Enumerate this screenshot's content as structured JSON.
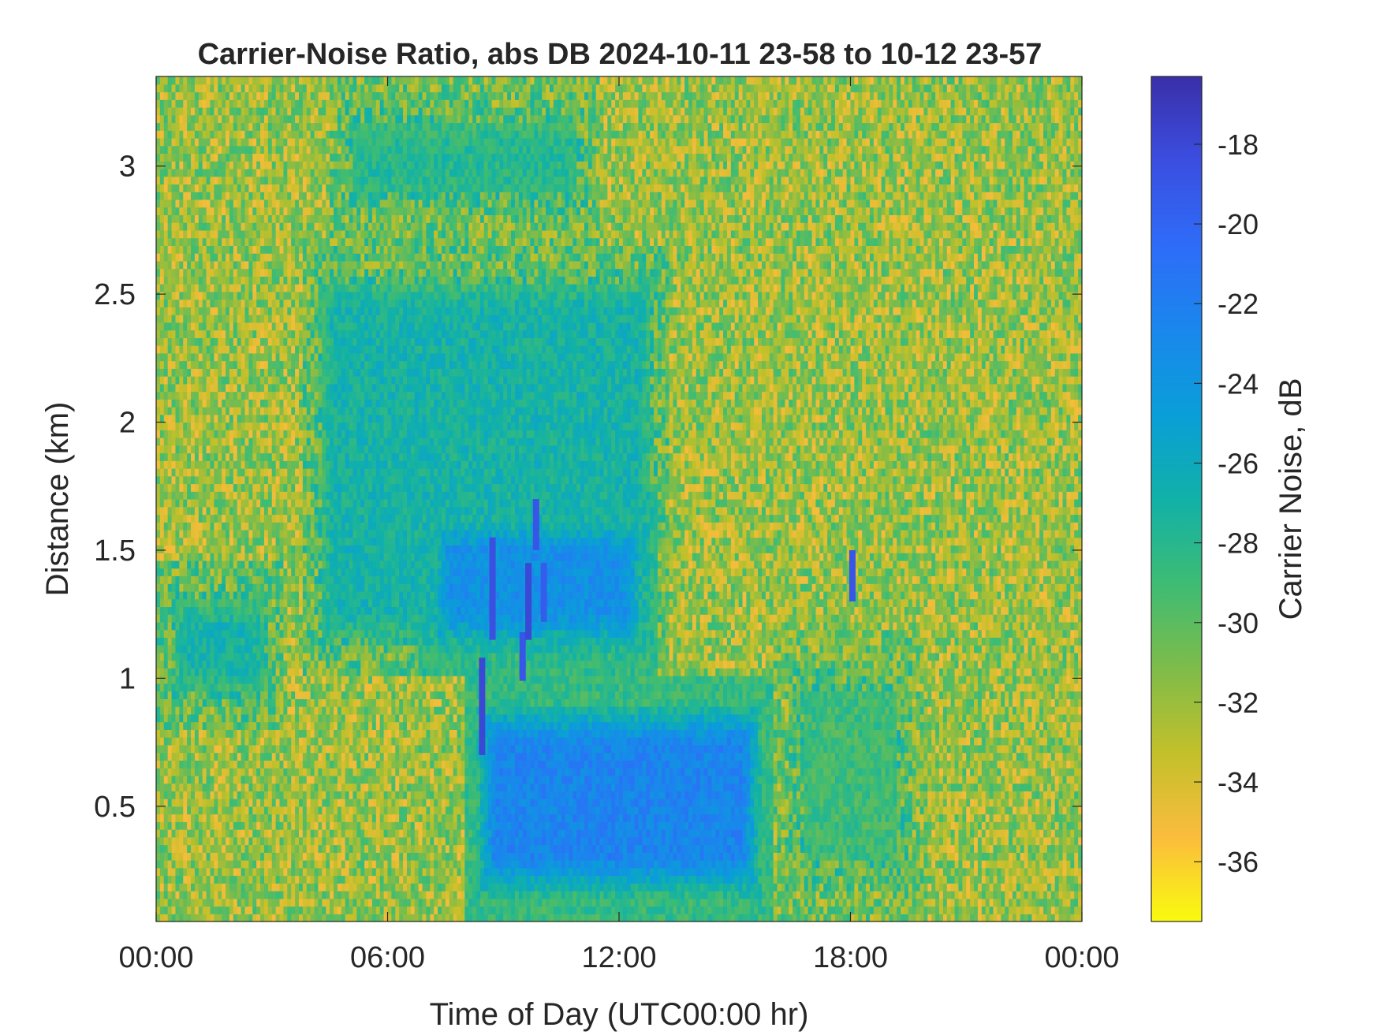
{
  "chart_data": {
    "type": "heatmap",
    "title": "Carrier-Noise Ratio, abs DB 2024-10-11 23-58 to 10-12 23-57",
    "xlabel": "Time of Day (UTC00:00 hr)",
    "ylabel": "Distance (km)",
    "xlim": [
      0,
      24
    ],
    "ylim": [
      0.05,
      3.35
    ],
    "xticks": [
      0,
      6,
      12,
      18,
      24
    ],
    "xtick_labels": [
      "00:00",
      "06:00",
      "12:00",
      "18:00",
      "00:00"
    ],
    "yticks": [
      0.5,
      1,
      1.5,
      2,
      2.5,
      3
    ],
    "ytick_labels": [
      "0.5",
      "1",
      "1.5",
      "2",
      "2.5",
      "3"
    ],
    "colorbar": {
      "label": "Carrier Noise, dB",
      "range": [
        -37.5,
        -16.3
      ],
      "direction": "reversed (high values at top)",
      "ticks": [
        -18,
        -20,
        -22,
        -24,
        -26,
        -28,
        -30,
        -32,
        -34,
        -36
      ],
      "tick_labels": [
        "-18",
        "-20",
        "-22",
        "-24",
        "-26",
        "-28",
        "-30",
        "-32",
        "-34",
        "-36"
      ],
      "colormap": [
        "#f9fb0e",
        "#fbbc3d",
        "#c2c02a",
        "#7ebc4a",
        "#3dbc74",
        "#11b1a8",
        "#0a9ed8",
        "#1a87ec",
        "#2e6cf8",
        "#3b4ee0",
        "#3a2fa8"
      ]
    },
    "grid": false,
    "description_of_field": [
      {
        "region": "background noise",
        "time_range": [
          0,
          24
        ],
        "distance_range": [
          0.05,
          3.35
        ],
        "value": -32
      },
      {
        "region": "boundary layer core",
        "time_range": [
          8,
          16
        ],
        "distance_range": [
          0.05,
          1.0
        ],
        "value": -22.5
      },
      {
        "region": "morning plume",
        "time_range": [
          6.8,
          13
        ],
        "distance_range": [
          1.0,
          1.75
        ],
        "value": -23.5
      },
      {
        "region": "mid-level band",
        "time_range": [
          3.8,
          13.3
        ],
        "distance_range": [
          1.0,
          2.7
        ],
        "value": -27
      },
      {
        "region": "upper band",
        "time_range": [
          4.5,
          11.5
        ],
        "distance_range": [
          2.7,
          3.35
        ],
        "value": -28
      },
      {
        "region": "early morning layer",
        "time_range": [
          0,
          3.3
        ],
        "distance_range": [
          0.8,
          1.45
        ],
        "value": -27
      },
      {
        "region": "afternoon decay",
        "time_range": [
          16,
          20
        ],
        "distance_range": [
          0.05,
          1.2
        ],
        "value": -29
      }
    ],
    "streaks": [
      {
        "time": 8.45,
        "distance_range": [
          0.7,
          1.08
        ],
        "value": -18
      },
      {
        "time": 8.72,
        "distance_range": [
          1.15,
          1.55
        ],
        "value": -18.5
      },
      {
        "time": 9.5,
        "distance_range": [
          0.99,
          1.18
        ],
        "value": -19
      },
      {
        "time": 9.65,
        "distance_range": [
          1.15,
          1.45
        ],
        "value": -18
      },
      {
        "time": 9.85,
        "distance_range": [
          1.5,
          1.7
        ],
        "value": -19
      },
      {
        "time": 10.05,
        "distance_range": [
          1.22,
          1.45
        ],
        "value": -19.5
      },
      {
        "time": 18.05,
        "distance_range": [
          1.3,
          1.5
        ],
        "value": -19
      }
    ]
  }
}
